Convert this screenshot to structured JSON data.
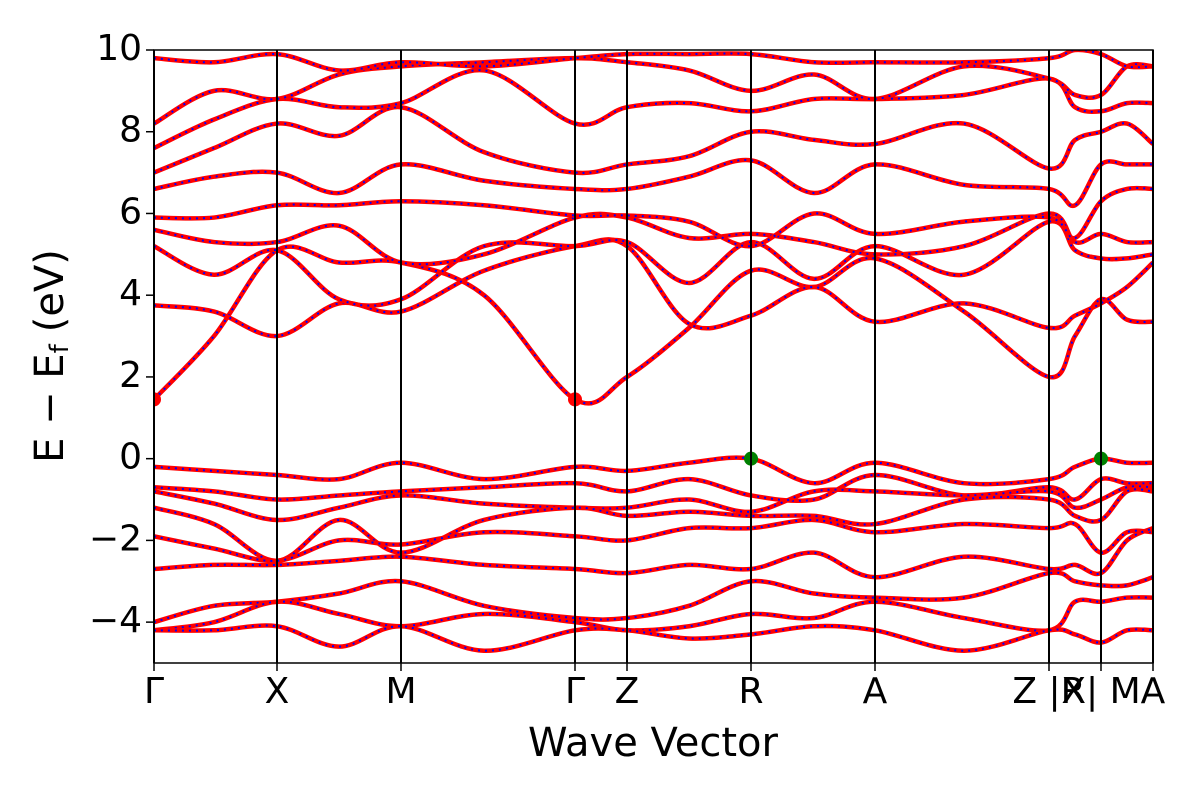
{
  "chart_data": {
    "type": "line",
    "xlabel": "Wave Vector",
    "ylabel": {
      "main": "E − E",
      "sub": "f",
      "unit": "(eV)"
    },
    "xlim": [
      0,
      9.99
    ],
    "ylim": [
      -5,
      10
    ],
    "xticks": [
      {
        "value": 0,
        "label": "Γ"
      },
      {
        "value": 1.23,
        "label": "X"
      },
      {
        "value": 2.47,
        "label": "M"
      },
      {
        "value": 4.21,
        "label": "Γ"
      },
      {
        "value": 4.73,
        "label": "Z"
      },
      {
        "value": 5.97,
        "label": "R"
      },
      {
        "value": 7.21,
        "label": "A"
      },
      {
        "value": 8.95,
        "label": "Z |R"
      },
      {
        "value": 9.47,
        "label": "X| M"
      },
      {
        "value": 9.99,
        "label": "A"
      }
    ],
    "yticks": [
      {
        "value": -4,
        "label": "−4"
      },
      {
        "value": -2,
        "label": "−2"
      },
      0,
      2,
      4,
      6,
      8,
      10
    ],
    "color": "#ff0000",
    "dash_color": "#0000ff",
    "vertical_lines": true,
    "x": [
      0,
      0.6,
      1.23,
      1.85,
      2.47,
      3.3,
      4.21,
      4.73,
      5.35,
      5.97,
      6.6,
      7.21,
      8.1,
      8.95,
      9.21,
      9.47,
      9.73,
      9.99
    ],
    "series": [
      {
        "values": [
          -0.2,
          -0.3,
          -0.4,
          -0.5,
          -0.1,
          -0.5,
          -0.2,
          -0.3,
          -0.1,
          0.0,
          -0.6,
          -0.1,
          -0.6,
          -0.5,
          -0.2,
          0.0,
          -0.1,
          -0.1
        ]
      },
      {
        "values": [
          -0.7,
          -0.8,
          -1.0,
          -0.9,
          -0.8,
          -0.7,
          -0.6,
          -0.8,
          -0.5,
          -0.9,
          -1.0,
          -0.4,
          -0.9,
          -0.7,
          -1.0,
          -0.5,
          -0.6,
          -0.6
        ]
      },
      {
        "values": [
          -0.8,
          -1.1,
          -1.5,
          -1.2,
          -0.9,
          -1.1,
          -1.2,
          -1.2,
          -1.0,
          -1.3,
          -0.8,
          -0.8,
          -0.9,
          -0.8,
          -1.2,
          -1.0,
          -0.7,
          -0.7
        ]
      },
      {
        "values": [
          -1.2,
          -1.6,
          -2.5,
          -1.5,
          -2.3,
          -1.5,
          -1.2,
          -1.4,
          -1.3,
          -1.4,
          -1.4,
          -1.6,
          -1.0,
          -1.0,
          -1.4,
          -1.5,
          -0.8,
          -0.8
        ]
      },
      {
        "values": [
          -1.9,
          -2.2,
          -2.5,
          -2.0,
          -2.1,
          -1.8,
          -1.9,
          -2.0,
          -1.7,
          -1.7,
          -1.5,
          -1.8,
          -1.6,
          -1.7,
          -1.6,
          -2.3,
          -1.8,
          -1.8
        ]
      },
      {
        "values": [
          -2.7,
          -2.6,
          -2.6,
          -2.5,
          -2.4,
          -2.6,
          -2.7,
          -2.8,
          -2.6,
          -2.7,
          -2.3,
          -2.9,
          -2.4,
          -2.7,
          -2.6,
          -2.8,
          -2.0,
          -1.7
        ]
      },
      {
        "values": [
          -4.0,
          -3.6,
          -3.5,
          -3.3,
          -3.0,
          -3.6,
          -3.9,
          -3.9,
          -3.6,
          -3.0,
          -3.3,
          -3.4,
          -3.4,
          -2.8,
          -3.0,
          -3.1,
          -3.1,
          -2.9
        ]
      },
      {
        "values": [
          -4.2,
          -4.0,
          -3.5,
          -3.8,
          -4.1,
          -3.8,
          -4.0,
          -4.2,
          -4.1,
          -3.8,
          -3.9,
          -3.5,
          -3.9,
          -4.2,
          -3.5,
          -3.5,
          -3.4,
          -3.4
        ]
      },
      {
        "values": [
          -4.2,
          -4.2,
          -4.1,
          -4.6,
          -4.1,
          -4.7,
          -4.2,
          -4.2,
          -4.4,
          -4.3,
          -4.1,
          -4.2,
          -4.7,
          -4.2,
          -4.3,
          -4.5,
          -4.2,
          -4.2
        ]
      },
      {
        "values": [
          1.45,
          3.0,
          5.1,
          4.8,
          4.8,
          4.0,
          1.45,
          2.0,
          3.2,
          4.6,
          4.2,
          4.9,
          3.6,
          2.0,
          3.0,
          3.9,
          3.4,
          3.35
        ]
      },
      {
        "values": [
          3.75,
          3.6,
          3.0,
          3.8,
          3.6,
          4.6,
          5.2,
          5.2,
          3.3,
          3.5,
          4.2,
          3.35,
          3.8,
          3.2,
          3.5,
          3.8,
          4.2,
          4.8
        ]
      },
      {
        "values": [
          5.2,
          4.5,
          5.1,
          3.9,
          3.9,
          5.2,
          5.2,
          5.3,
          4.3,
          5.3,
          4.4,
          5.2,
          4.5,
          5.8,
          5.1,
          4.9,
          4.9,
          5.0
        ]
      },
      {
        "values": [
          5.6,
          5.3,
          5.3,
          5.7,
          4.8,
          5.0,
          5.9,
          5.9,
          5.4,
          5.5,
          5.3,
          5.0,
          5.2,
          6.0,
          5.3,
          5.5,
          5.3,
          5.3
        ]
      },
      {
        "values": [
          5.9,
          5.9,
          6.2,
          6.2,
          6.3,
          6.2,
          5.95,
          5.95,
          5.8,
          5.2,
          6.0,
          5.5,
          5.8,
          5.9,
          5.4,
          6.3,
          6.6,
          6.6
        ]
      },
      {
        "values": [
          6.6,
          6.9,
          7.0,
          6.5,
          7.2,
          6.8,
          6.6,
          6.6,
          6.9,
          7.3,
          6.5,
          7.2,
          6.7,
          6.6,
          6.2,
          7.2,
          7.2,
          7.2
        ]
      },
      {
        "values": [
          7.0,
          7.6,
          8.2,
          7.9,
          8.6,
          7.5,
          7.0,
          7.2,
          7.4,
          8.0,
          7.8,
          7.7,
          8.2,
          7.1,
          7.8,
          8.0,
          8.2,
          7.7
        ]
      },
      {
        "values": [
          7.6,
          8.3,
          8.8,
          8.6,
          8.7,
          9.5,
          8.2,
          8.6,
          8.7,
          8.5,
          8.8,
          8.8,
          8.9,
          9.3,
          8.6,
          8.5,
          8.7,
          8.7
        ]
      },
      {
        "values": [
          8.2,
          9.0,
          8.8,
          9.4,
          9.6,
          9.7,
          9.8,
          9.7,
          9.5,
          9.0,
          9.4,
          8.8,
          9.6,
          9.3,
          8.9,
          8.9,
          9.6,
          9.6
        ]
      },
      {
        "values": [
          9.8,
          9.7,
          9.9,
          9.5,
          9.7,
          9.6,
          9.8,
          9.9,
          9.9,
          9.9,
          9.7,
          9.7,
          9.7,
          9.8,
          10,
          9.9,
          9.6,
          9.6
        ]
      }
    ],
    "markers": [
      {
        "x": 0,
        "y": 1.45,
        "color": "#ff0000"
      },
      {
        "x": 4.21,
        "y": 1.45,
        "color": "#ff0000"
      },
      {
        "x": 5.97,
        "y": 0,
        "color": "#008000"
      },
      {
        "x": 9.47,
        "y": 0,
        "color": "#008000"
      }
    ]
  }
}
